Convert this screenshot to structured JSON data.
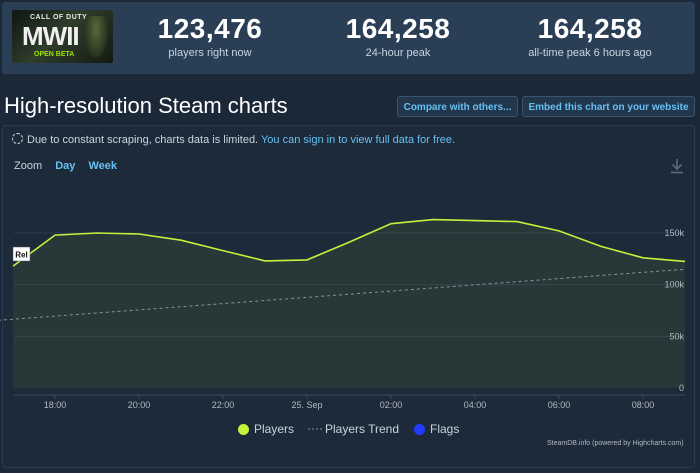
{
  "game": {
    "logo_top": "CALL OF DUTY",
    "logo_mark": "MWII",
    "logo_beta": "OPEN BETA"
  },
  "stats": [
    {
      "value": "123,476",
      "label": "players right now"
    },
    {
      "value": "164,258",
      "label": "24-hour peak"
    },
    {
      "value": "164,258",
      "label": "all-time peak 6 hours ago"
    }
  ],
  "page": {
    "title": "High-resolution Steam charts",
    "compare_button": "Compare with others...",
    "embed_button": "Embed this chart on your website"
  },
  "notice": {
    "text": "Due to constant scraping, charts data is limited.",
    "link": "You can sign in to view full data for free."
  },
  "zoom": {
    "label": "Zoom",
    "options": [
      "Day",
      "Week"
    ]
  },
  "chart_data": {
    "type": "line",
    "x_labels": [
      "18:00",
      "20:00",
      "22:00",
      "25. Sep",
      "02:00",
      "04:00",
      "06:00",
      "08:00"
    ],
    "y_ticks": [
      "150k",
      "100k",
      "50k",
      "0"
    ],
    "ylim": [
      0,
      190000
    ],
    "flag_label": "Rel",
    "series": [
      {
        "name": "Players",
        "color": "#c3f23c",
        "x": [
          "17:00",
          "18:00",
          "19:00",
          "20:00",
          "21:00",
          "22:00",
          "23:00",
          "00:00",
          "01:00",
          "02:00",
          "03:00",
          "04:00",
          "05:00",
          "06:00",
          "07:00",
          "08:00",
          "09:00"
        ],
        "values": [
          118000,
          148000,
          150000,
          149000,
          143000,
          133000,
          123000,
          124000,
          141000,
          159000,
          163000,
          162000,
          161000,
          152000,
          137000,
          126000,
          122500
        ]
      },
      {
        "name": "Players Trend",
        "color": "#8b9098",
        "x": [
          "16:30",
          "09:00"
        ],
        "values": [
          65000,
          115000
        ]
      }
    ],
    "legend": [
      "Players",
      "Players Trend",
      "Flags"
    ],
    "legend_colors": {
      "players": "#c3f23c",
      "flags": "#1f3cff"
    },
    "grid": true
  },
  "credits": "SteamDB.info (powered by Highcharts.com)"
}
